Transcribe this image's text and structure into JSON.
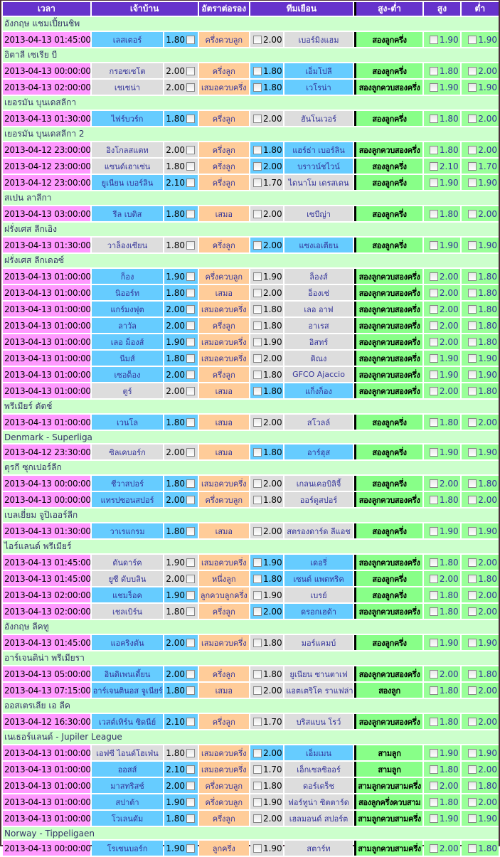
{
  "header": {
    "time": "เวลา",
    "home": "เจ้าบ้าน",
    "handicap": "อัตราต่อรอง",
    "away": "ทีมเยือน",
    "ou": "สูง-ต่ำ",
    "high": "สูง",
    "low": "ต่ำ"
  },
  "colors": {
    "header": "#6633cc",
    "time": "#ff99ff",
    "favorite": "#66ccff",
    "neutral": "#dddddd",
    "handicap": "#ffcc99",
    "league": "#ccffcc",
    "ou": "#88ff88"
  },
  "leagues": [
    {
      "name": "อังกฤษ แชมเปี้ยนชิพ",
      "matches": [
        {
          "time": "2013-04-13 01:45:00",
          "home": "เลสเตอร์",
          "home_odds": "1.80",
          "handicap": "ครึ่งควบลูก",
          "away_odds": "2.00",
          "away": "เบอร์มิงแฮม",
          "fav": "home",
          "ou": "สองลูกครึ่ง",
          "high": "1.90",
          "low": "1.90"
        }
      ]
    },
    {
      "name": "อิตาลี เซเรีย บี",
      "matches": [
        {
          "time": "2013-04-13 00:00:00",
          "home": "กรอซเซโต",
          "home_odds": "2.00",
          "handicap": "ครึ่งลูก",
          "away_odds": "1.80",
          "away": "เอ็มโปลี",
          "fav": "away",
          "ou": "สองลูกครึ่ง",
          "high": "1.80",
          "low": "2.00"
        },
        {
          "time": "2013-04-13 02:00:00",
          "home": "เชเซน่า",
          "home_odds": "2.00",
          "handicap": "เสมอควบครึ่ง",
          "away_odds": "1.80",
          "away": "เวโรน่า",
          "fav": "away",
          "ou": "สองลูกควบสองครึ่ง",
          "high": "1.90",
          "low": "1.90"
        }
      ]
    },
    {
      "name": "เยอรมัน บุนเดสลีกา",
      "matches": [
        {
          "time": "2013-04-13 01:30:00",
          "home": "ไฟร์บวร์ก",
          "home_odds": "1.80",
          "handicap": "ครึ่งลูก",
          "away_odds": "2.00",
          "away": "ฮันโนเวอร์",
          "fav": "home",
          "ou": "สองลูกครึ่ง",
          "high": "1.80",
          "low": "2.00"
        }
      ]
    },
    {
      "name": "เยอรมัน บุนเดสลีกา 2",
      "matches": [
        {
          "time": "2013-04-12 23:00:00",
          "home": "อิงโกลสแตท",
          "home_odds": "2.00",
          "handicap": "ครึ่งลูก",
          "away_odds": "1.80",
          "away": "แฮร์ธ่า เบอร์ลิน",
          "fav": "away",
          "ou": "สองลูกควบสองครึ่ง",
          "high": "1.80",
          "low": "2.00"
        },
        {
          "time": "2013-04-12 23:00:00",
          "home": "แซนด์เฮาเซ่น",
          "home_odds": "1.80",
          "handicap": "ครึ่งลูก",
          "away_odds": "2.00",
          "away": "บราวน์ชไวน์",
          "fav": "away",
          "ou": "สองลูกครึ่ง",
          "high": "2.10",
          "low": "1.70"
        },
        {
          "time": "2013-04-12 23:00:00",
          "home": "ยูเนียน เบอร์ลิน",
          "home_odds": "2.10",
          "handicap": "ครึ่งลูก",
          "away_odds": "1.70",
          "away": "ไดนาโม เดรสเดน",
          "fav": "home",
          "ou": "สองลูกครึ่ง",
          "high": "1.90",
          "low": "1.90"
        }
      ]
    },
    {
      "name": "สเปน ลาลีกา",
      "matches": [
        {
          "time": "2013-04-13 03:00:00",
          "home": "รีล เบติส",
          "home_odds": "1.80",
          "handicap": "เสมอ",
          "away_odds": "2.00",
          "away": "เซบีญ่า",
          "fav": "home",
          "ou": "สองลูกครึ่ง",
          "high": "1.80",
          "low": "2.00"
        }
      ]
    },
    {
      "name": "ฝรั่งเศส ลีกเอิง",
      "matches": [
        {
          "time": "2013-04-13 01:30:00",
          "home": "วาล็องเซียน",
          "home_odds": "1.80",
          "handicap": "ครึ่งลูก",
          "away_odds": "2.00",
          "away": "แซงเอเตียน",
          "fav": "away",
          "ou": "สองลูกครึ่ง",
          "high": "1.90",
          "low": "1.90"
        }
      ]
    },
    {
      "name": "ฝรั่งเศส ลีกเดอซ์",
      "matches": [
        {
          "time": "2013-04-13 01:00:00",
          "home": "ก็อง",
          "home_odds": "1.90",
          "handicap": "ครึ่งควบลูก",
          "away_odds": "1.90",
          "away": "ล็องส์",
          "fav": "home",
          "ou": "สองลูกควบสองครึ่ง",
          "high": "2.00",
          "low": "1.80"
        },
        {
          "time": "2013-04-13 01:00:00",
          "home": "นิออร์ท",
          "home_odds": "1.80",
          "handicap": "เสมอ",
          "away_odds": "2.00",
          "away": "อ็องเช่",
          "fav": "home",
          "ou": "สองลูกควบสองครึ่ง",
          "high": "2.00",
          "low": "1.80"
        },
        {
          "time": "2013-04-13 01:00:00",
          "home": "แกร์มงฟุต",
          "home_odds": "2.00",
          "handicap": "เสมอควบครึ่ง",
          "away_odds": "1.80",
          "away": "เลอ อาฟ",
          "fav": "home",
          "ou": "สองลูกควบสองครึ่ง",
          "high": "2.00",
          "low": "1.80"
        },
        {
          "time": "2013-04-13 01:00:00",
          "home": "ลาวัล",
          "home_odds": "2.00",
          "handicap": "ครึ่งลูก",
          "away_odds": "1.80",
          "away": "อาเรส",
          "fav": "home",
          "ou": "สองลูกควบสองครึ่ง",
          "high": "2.00",
          "low": "1.80"
        },
        {
          "time": "2013-04-13 01:00:00",
          "home": "เลอ ม็องส์",
          "home_odds": "1.90",
          "handicap": "เสมอควบครึ่ง",
          "away_odds": "1.90",
          "away": "อิสทร์",
          "fav": "home",
          "ou": "สองลูกควบสองครึ่ง",
          "high": "2.00",
          "low": "1.80"
        },
        {
          "time": "2013-04-13 01:00:00",
          "home": "นีมส์",
          "home_odds": "1.80",
          "handicap": "เสมอควบครึ่ง",
          "away_odds": "2.00",
          "away": "ดิณง",
          "fav": "home",
          "ou": "สองลูกควบสองครึ่ง",
          "high": "1.90",
          "low": "1.90"
        },
        {
          "time": "2013-04-13 01:00:00",
          "home": "เซอด็อง",
          "home_odds": "2.00",
          "handicap": "ครึ่งลูก",
          "away_odds": "1.80",
          "away": "GFCO Ajaccio",
          "fav": "home",
          "ou": "สองลูกควบสองครึ่ง",
          "high": "1.90",
          "low": "1.90"
        },
        {
          "time": "2013-04-13 01:00:00",
          "home": "ตูร์",
          "home_odds": "2.00",
          "handicap": "เสมอ",
          "away_odds": "1.80",
          "away": "แก็งก็อง",
          "fav": "away",
          "ou": "สองลูกควบสองครึ่ง",
          "high": "2.00",
          "low": "1.80"
        }
      ]
    },
    {
      "name": "พรีเมียร์ ดัตช์",
      "matches": [
        {
          "time": "2013-04-13 01:00:00",
          "home": "เวนโล",
          "home_odds": "1.80",
          "handicap": "เสมอ",
          "away_odds": "2.00",
          "away": "สโวลล์",
          "fav": "home",
          "ou": "สองลูกครึ่ง",
          "high": "1.80",
          "low": "2.00"
        }
      ]
    },
    {
      "name": "Denmark - Superliga",
      "matches": [
        {
          "time": "2013-04-12 23:30:00",
          "home": "ซิลเคบอร์ก",
          "home_odds": "2.00",
          "handicap": "เสมอ",
          "away_odds": "1.80",
          "away": "อาร์ฮุส",
          "fav": "away",
          "ou": "สองลูกครึ่ง",
          "high": "1.90",
          "low": "1.90"
        }
      ]
    },
    {
      "name": "ตุรกี ซุกเปอร์ลีก",
      "matches": [
        {
          "time": "2013-04-13 00:00:00",
          "home": "ชีวาสปอร์",
          "home_odds": "1.80",
          "handicap": "เสมอควบครึ่ง",
          "away_odds": "2.00",
          "away": "เกลนเคอบิลิจี้",
          "fav": "home",
          "ou": "สองลูกครึ่ง",
          "high": "2.00",
          "low": "1.80"
        },
        {
          "time": "2013-04-13 00:00:00",
          "home": "แทรปซอนสปอร์",
          "home_odds": "2.00",
          "handicap": "ครึ่งควบลูก",
          "away_odds": "1.80",
          "away": "ออร์ดูสปอร์",
          "fav": "home",
          "ou": "สองลูกควบสองครึ่ง",
          "high": "1.80",
          "low": "2.00"
        }
      ]
    },
    {
      "name": "เบลเยี่ยม จูปิเออร์ลีก",
      "matches": [
        {
          "time": "2013-04-13 01:30:00",
          "home": "วาเรแกรม",
          "home_odds": "1.80",
          "handicap": "เสมอ",
          "away_odds": "2.00",
          "away": "สตรองดาร์ด ลีแอช",
          "fav": "home",
          "ou": "สองลูกครึ่ง",
          "high": "1.90",
          "low": "1.90"
        }
      ]
    },
    {
      "name": "ไอร์แลนด์ พรีเมียร์",
      "matches": [
        {
          "time": "2013-04-13 01:45:00",
          "home": "ดันดาร์ค",
          "home_odds": "1.90",
          "handicap": "เสมอควบครึ่ง",
          "away_odds": "1.90",
          "away": "เดอรี่",
          "fav": "away",
          "ou": "สองลูกควบสองครึ่ง",
          "high": "1.80",
          "low": "2.00"
        },
        {
          "time": "2013-04-13 01:45:00",
          "home": "ยูซี ดับบลิน",
          "home_odds": "2.00",
          "handicap": "หนึ่งลูก",
          "away_odds": "1.80",
          "away": "เซนต์ แพตทริค",
          "fav": "away",
          "ou": "สองลูกครึ่ง",
          "high": "2.00",
          "low": "1.80"
        },
        {
          "time": "2013-04-13 02:00:00",
          "home": "แชมร็อค",
          "home_odds": "1.90",
          "handicap": "ลูกควบลูกครึ่ง",
          "away_odds": "1.90",
          "away": "เบรย์",
          "fav": "home",
          "ou": "สองลูกครึ่ง",
          "high": "1.80",
          "low": "2.00"
        },
        {
          "time": "2013-04-13 02:00:00",
          "home": "เชลเบิร์น",
          "home_odds": "1.80",
          "handicap": "ครึ่งลูก",
          "away_odds": "2.00",
          "away": "ดรอกเฮด้า",
          "fav": "away",
          "ou": "สองลูกควบสองครึ่ง",
          "high": "1.80",
          "low": "2.00"
        }
      ]
    },
    {
      "name": "อังกฤษ ลีคทู",
      "matches": [
        {
          "time": "2013-04-13 01:45:00",
          "home": "แอคริงตัน",
          "home_odds": "2.00",
          "handicap": "เสมอควบครึ่ง",
          "away_odds": "1.80",
          "away": "มอร์แคมบ์",
          "fav": "home",
          "ou": "สองลูกครึ่ง",
          "high": "1.90",
          "low": "1.90"
        }
      ]
    },
    {
      "name": "อาร์เจนติน่า พรีเมียรา",
      "matches": [
        {
          "time": "2013-04-13 05:00:00",
          "home": "อินดิเพนเดี้ยน",
          "home_odds": "2.00",
          "handicap": "ครึ่งลูก",
          "away_odds": "1.80",
          "away": "ยูเนียน ซานตาเฟ",
          "fav": "home",
          "ou": "สองลูกควบสองครึ่ง",
          "high": "2.00",
          "low": "1.80"
        },
        {
          "time": "2013-04-13 07:15:00",
          "home": "อาร์เจนตินอส จูเนียร์",
          "home_odds": "1.80",
          "handicap": "เสมอ",
          "away_odds": "2.00",
          "away": "แอตเตริโค ราแฟล่า",
          "fav": "home",
          "ou": "สองลูก",
          "high": "1.80",
          "low": "2.00"
        }
      ]
    },
    {
      "name": "ออสเตรเลีย เอ ลีค",
      "matches": [
        {
          "time": "2013-04-12 16:30:00",
          "home": "เวสต์เทิร์น ซิดนีย์",
          "home_odds": "2.10",
          "handicap": "ครึ่งลูก",
          "away_odds": "1.70",
          "away": "บริสแบน โรว์",
          "fav": "home",
          "ou": "สองลูกควบสองครึ่ง",
          "high": "1.80",
          "low": "2.00"
        }
      ]
    },
    {
      "name": "เนเธอร์แลนด์ - Jupiler League",
      "matches": [
        {
          "time": "2013-04-13 01:00:00",
          "home": "เอฟซี ไอนด์โฮเฟ่น",
          "home_odds": "1.80",
          "handicap": "เสมอควบครึ่ง",
          "away_odds": "2.00",
          "away": "เอ็มเมน",
          "fav": "away",
          "ou": "สามลูก",
          "high": "1.90",
          "low": "1.90"
        },
        {
          "time": "2013-04-13 01:00:00",
          "home": "ออสส์",
          "home_odds": "2.10",
          "handicap": "เสมอควบครึ่ง",
          "away_odds": "1.70",
          "away": "เอ็กเซลซิออร์",
          "fav": "home",
          "ou": "สามลูก",
          "high": "1.80",
          "low": "2.00"
        },
        {
          "time": "2013-04-13 01:00:00",
          "home": "มาสทริสช์",
          "home_odds": "2.00",
          "handicap": "ครึ่งควบลูก",
          "away_odds": "1.80",
          "away": "ดอร์เดร็ช",
          "fav": "home",
          "ou": "สามลูกควบสามครึ่ง",
          "high": "2.00",
          "low": "1.80"
        },
        {
          "time": "2013-04-13 01:00:00",
          "home": "สปาต้า",
          "home_odds": "1.90",
          "handicap": "ครึ่งควบลูก",
          "away_odds": "1.90",
          "away": "ฟอร์ทูน่า ซิตตาร์ด",
          "fav": "home",
          "ou": "สองลูกครึ่งควบสาม",
          "high": "1.80",
          "low": "2.00"
        },
        {
          "time": "2013-04-13 01:00:00",
          "home": "โวเลนดัม",
          "home_odds": "1.80",
          "handicap": "ครึ่งลูก",
          "away_odds": "2.00",
          "away": "เฮลมอนด์ สปอร์ต",
          "fav": "home",
          "ou": "สามลูกควบสามครึ่ง",
          "high": "1.90",
          "low": "1.90"
        }
      ]
    },
    {
      "name": "Norway - Tippeligaen",
      "matches": [
        {
          "time": "2013-04-13 00:00:00",
          "home": "โรเซนบอร์ก",
          "home_odds": "1.90",
          "handicap": "ลูกครึ่ง",
          "away_odds": "1.90",
          "away": "สตาร์ท",
          "fav": "home",
          "ou": "สามลูกควบสามครึ่ง",
          "high": "2.00",
          "low": "1.80"
        }
      ]
    }
  ]
}
